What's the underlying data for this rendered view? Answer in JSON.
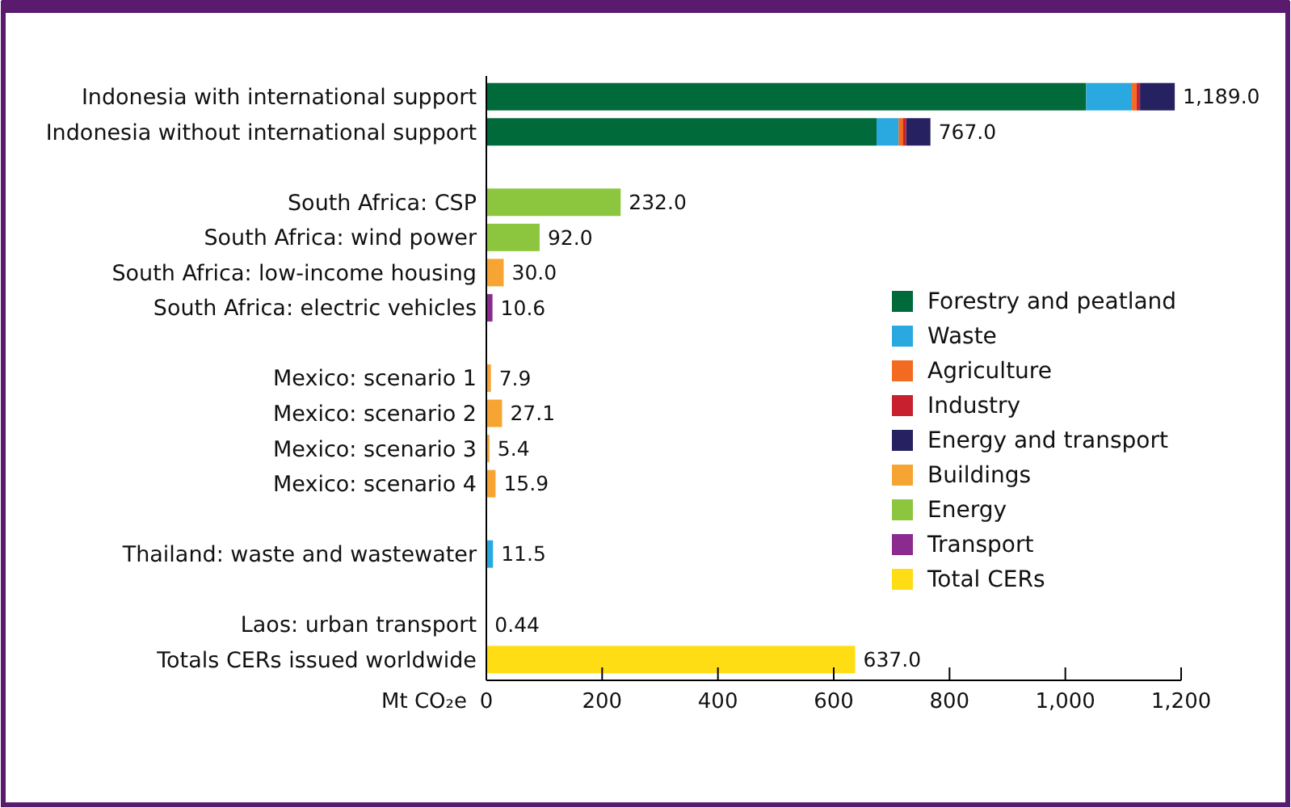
{
  "chart_data": {
    "type": "bar",
    "orientation": "horizontal",
    "stacked": true,
    "xlabel": "Mt CO₂e",
    "categories": [
      "Indonesia with international support",
      "Indonesia without international support",
      null,
      "South Africa: CSP",
      "South Africa: wind power",
      "South Africa: low-income housing",
      "South Africa: electric vehicles",
      null,
      "Mexico: scenario 1",
      "Mexico: scenario 2",
      "Mexico: scenario 3",
      "Mexico: scenario 4",
      null,
      "Thailand: waste and wastewater",
      null,
      "Laos: urban transport",
      "Totals CERs issued worldwide"
    ],
    "series": [
      {
        "name": "Forestry and peatland",
        "color": "#006a3b",
        "values": [
          1036,
          674,
          null,
          null,
          null,
          null,
          null,
          null,
          null,
          null,
          null,
          null,
          null,
          null,
          null,
          null,
          null
        ]
      },
      {
        "name": "Waste",
        "color": "#29a9e0",
        "values": [
          79,
          38,
          null,
          null,
          null,
          null,
          null,
          null,
          null,
          null,
          null,
          null,
          null,
          11.5,
          null,
          null,
          null
        ]
      },
      {
        "name": "Agriculture",
        "color": "#f26b21",
        "values": [
          8,
          8,
          null,
          null,
          null,
          null,
          null,
          null,
          null,
          null,
          null,
          null,
          null,
          null,
          null,
          null,
          null
        ]
      },
      {
        "name": "Industry",
        "color": "#c8202f",
        "values": [
          6,
          5,
          null,
          null,
          null,
          null,
          null,
          null,
          null,
          null,
          null,
          null,
          null,
          null,
          null,
          null,
          null
        ]
      },
      {
        "name": "Energy and transport",
        "color": "#262261",
        "values": [
          60,
          42,
          null,
          null,
          null,
          null,
          null,
          null,
          null,
          null,
          null,
          null,
          null,
          null,
          null,
          null,
          null
        ]
      },
      {
        "name": "Buildings",
        "color": "#f6a533",
        "values": [
          null,
          null,
          null,
          null,
          null,
          30,
          null,
          null,
          7.9,
          27.1,
          5.4,
          15.9,
          null,
          null,
          null,
          null,
          null
        ]
      },
      {
        "name": "Energy",
        "color": "#8cc63f",
        "values": [
          null,
          null,
          null,
          232,
          92,
          null,
          null,
          null,
          null,
          null,
          null,
          null,
          null,
          null,
          null,
          null,
          null
        ]
      },
      {
        "name": "Transport",
        "color": "#8b2a8f",
        "values": [
          null,
          null,
          null,
          null,
          null,
          null,
          10.6,
          null,
          null,
          null,
          null,
          null,
          null,
          null,
          null,
          0.44,
          null
        ]
      },
      {
        "name": "Total CERs",
        "color": "#ffdd15",
        "values": [
          null,
          null,
          null,
          null,
          null,
          null,
          null,
          null,
          null,
          null,
          null,
          null,
          null,
          null,
          null,
          null,
          637
        ]
      }
    ],
    "totals": [
      "1,189.0",
      "767.0",
      null,
      "232.0",
      "92.0",
      "30.0",
      "10.6",
      null,
      "7.9",
      "27.1",
      "5.4",
      "15.9",
      null,
      "11.5",
      null,
      "0.44",
      "637.0"
    ],
    "xlim": [
      0,
      1200
    ],
    "xticks": [
      0,
      200,
      400,
      600,
      800,
      {
        "value": 1000,
        "label": "1,000"
      },
      {
        "value": 1200,
        "label": "1,200"
      }
    ],
    "grid": false,
    "legend": "right"
  }
}
